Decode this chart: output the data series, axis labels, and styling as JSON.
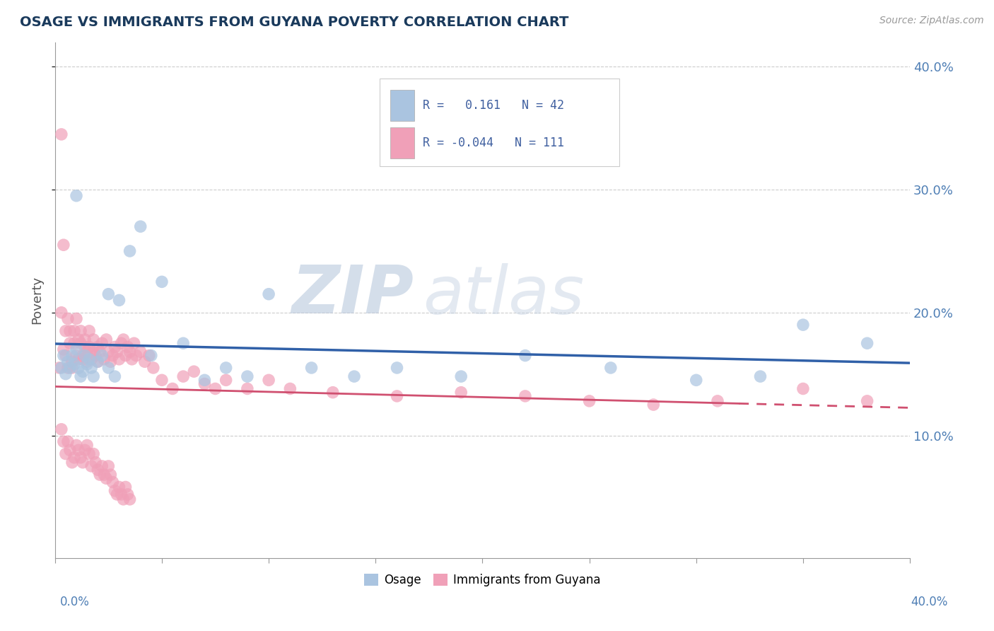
{
  "title": "OSAGE VS IMMIGRANTS FROM GUYANA POVERTY CORRELATION CHART",
  "source": "Source: ZipAtlas.com",
  "ylabel": "Poverty",
  "xlim": [
    0.0,
    0.4
  ],
  "ylim": [
    0.0,
    0.42
  ],
  "ytick_vals": [
    0.1,
    0.2,
    0.3,
    0.4
  ],
  "ytick_labels": [
    "10.0%",
    "20.0%",
    "30.0%",
    "40.0%"
  ],
  "blue_R": "0.161",
  "blue_N": "42",
  "pink_R": "-0.044",
  "pink_N": "111",
  "blue_color": "#aac4e0",
  "pink_color": "#f0a0b8",
  "blue_line_color": "#3060a8",
  "pink_line_color": "#d05070",
  "watermark_zip": "ZIP",
  "watermark_atlas": "atlas",
  "legend_labels": [
    "Osage",
    "Immigrants from Guyana"
  ],
  "blue_scatter_x": [
    0.003,
    0.004,
    0.005,
    0.006,
    0.007,
    0.008,
    0.009,
    0.01,
    0.011,
    0.012,
    0.013,
    0.014,
    0.015,
    0.016,
    0.017,
    0.018,
    0.02,
    0.022,
    0.025,
    0.028,
    0.03,
    0.035,
    0.04,
    0.045,
    0.05,
    0.06,
    0.07,
    0.08,
    0.09,
    0.1,
    0.12,
    0.14,
    0.16,
    0.19,
    0.22,
    0.26,
    0.3,
    0.33,
    0.35,
    0.38,
    0.01,
    0.025
  ],
  "blue_scatter_y": [
    0.155,
    0.165,
    0.15,
    0.16,
    0.155,
    0.165,
    0.158,
    0.17,
    0.155,
    0.148,
    0.152,
    0.165,
    0.158,
    0.162,
    0.155,
    0.148,
    0.16,
    0.165,
    0.155,
    0.148,
    0.21,
    0.25,
    0.27,
    0.165,
    0.225,
    0.175,
    0.145,
    0.155,
    0.148,
    0.215,
    0.155,
    0.148,
    0.155,
    0.148,
    0.165,
    0.155,
    0.145,
    0.148,
    0.19,
    0.175,
    0.295,
    0.215
  ],
  "pink_scatter_x": [
    0.002,
    0.003,
    0.003,
    0.004,
    0.004,
    0.005,
    0.005,
    0.006,
    0.006,
    0.007,
    0.007,
    0.008,
    0.008,
    0.009,
    0.009,
    0.01,
    0.01,
    0.011,
    0.011,
    0.012,
    0.012,
    0.013,
    0.013,
    0.014,
    0.014,
    0.015,
    0.015,
    0.016,
    0.016,
    0.017,
    0.018,
    0.018,
    0.019,
    0.02,
    0.02,
    0.021,
    0.022,
    0.023,
    0.024,
    0.025,
    0.026,
    0.027,
    0.028,
    0.029,
    0.03,
    0.031,
    0.032,
    0.033,
    0.034,
    0.035,
    0.036,
    0.037,
    0.038,
    0.04,
    0.042,
    0.044,
    0.046,
    0.05,
    0.055,
    0.06,
    0.065,
    0.07,
    0.075,
    0.08,
    0.09,
    0.1,
    0.11,
    0.13,
    0.16,
    0.19,
    0.22,
    0.25,
    0.28,
    0.31,
    0.35,
    0.38,
    0.003,
    0.004,
    0.005,
    0.006,
    0.007,
    0.008,
    0.009,
    0.01,
    0.011,
    0.012,
    0.013,
    0.014,
    0.015,
    0.016,
    0.017,
    0.018,
    0.019,
    0.02,
    0.021,
    0.022,
    0.023,
    0.024,
    0.025,
    0.026,
    0.027,
    0.028,
    0.029,
    0.03,
    0.031,
    0.032,
    0.033,
    0.034,
    0.035
  ],
  "pink_scatter_y": [
    0.155,
    0.2,
    0.345,
    0.255,
    0.17,
    0.165,
    0.185,
    0.195,
    0.155,
    0.175,
    0.185,
    0.16,
    0.155,
    0.175,
    0.185,
    0.165,
    0.195,
    0.178,
    0.162,
    0.185,
    0.175,
    0.162,
    0.165,
    0.172,
    0.178,
    0.168,
    0.16,
    0.172,
    0.185,
    0.162,
    0.178,
    0.168,
    0.165,
    0.172,
    0.16,
    0.168,
    0.175,
    0.162,
    0.178,
    0.168,
    0.16,
    0.165,
    0.172,
    0.168,
    0.162,
    0.175,
    0.178,
    0.165,
    0.172,
    0.168,
    0.162,
    0.175,
    0.165,
    0.168,
    0.16,
    0.165,
    0.155,
    0.145,
    0.138,
    0.148,
    0.152,
    0.142,
    0.138,
    0.145,
    0.138,
    0.145,
    0.138,
    0.135,
    0.132,
    0.135,
    0.132,
    0.128,
    0.125,
    0.128,
    0.138,
    0.128,
    0.105,
    0.095,
    0.085,
    0.095,
    0.088,
    0.078,
    0.082,
    0.092,
    0.088,
    0.082,
    0.078,
    0.088,
    0.092,
    0.085,
    0.075,
    0.085,
    0.078,
    0.072,
    0.068,
    0.075,
    0.068,
    0.065,
    0.075,
    0.068,
    0.062,
    0.055,
    0.052,
    0.058,
    0.052,
    0.048,
    0.058,
    0.052,
    0.048
  ]
}
